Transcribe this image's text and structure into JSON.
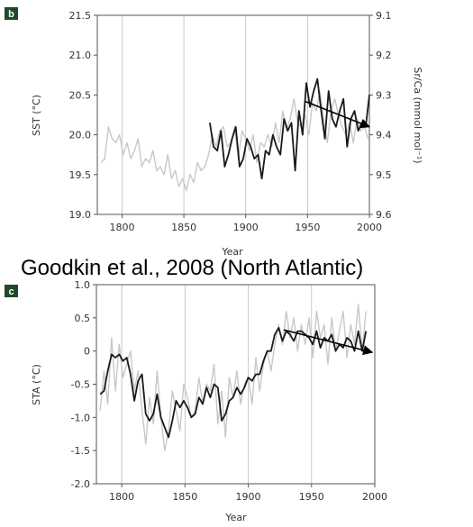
{
  "headline": "Goodkin et al., 2008  (North Atlantic)",
  "colors": {
    "panel_badge": "#1f4a2a",
    "gray_series": "#c8c8c8",
    "dark_series": "#1a1a1a",
    "frame": "#555555"
  },
  "chart_data": [
    {
      "type": "line",
      "panel_label": "b",
      "xlabel": "Year",
      "ylabel": "SST (°C)",
      "ylabel_right": "Sr/Ca (mmol mol⁻¹)",
      "xlim": [
        1780,
        2000
      ],
      "ylim": [
        19.0,
        21.5
      ],
      "ylim_right": [
        9.6,
        9.1
      ],
      "right_axis_inverted": true,
      "x_ticks": [
        "1800",
        "1850",
        "1900",
        "1950",
        "2000"
      ],
      "y_ticks": [
        "19.0",
        "19.5",
        "20.0",
        "20.5",
        "21.0",
        "21.5"
      ],
      "y_ticks_right": [
        "9.6",
        "9.5",
        "9.4",
        "9.3",
        "9.2",
        "9.1"
      ],
      "grid_x": [
        1800,
        1850,
        1900,
        1950
      ],
      "series": [
        {
          "color": "gray",
          "x": [
            1783,
            1786,
            1789,
            1792,
            1795,
            1798,
            1801,
            1804,
            1807,
            1810,
            1813,
            1816,
            1819,
            1822,
            1825,
            1828,
            1831,
            1834,
            1837,
            1840,
            1843,
            1846,
            1849,
            1852,
            1855,
            1858,
            1861,
            1864,
            1867,
            1870,
            1873,
            1876,
            1879,
            1882,
            1885,
            1888,
            1891,
            1894,
            1897,
            1900,
            1903,
            1906,
            1909,
            1912,
            1915,
            1918,
            1921,
            1924,
            1927,
            1930,
            1933,
            1936,
            1939,
            1942,
            1945,
            1948,
            1951,
            1954,
            1957,
            1960,
            1963,
            1966,
            1969,
            1972,
            1975,
            1978,
            1981,
            1984,
            1987,
            1990,
            1993,
            1996,
            1999
          ],
          "y": [
            19.65,
            19.7,
            20.1,
            19.95,
            19.9,
            20.0,
            19.75,
            19.9,
            19.7,
            19.8,
            19.95,
            19.6,
            19.7,
            19.65,
            19.8,
            19.55,
            19.6,
            19.5,
            19.75,
            19.45,
            19.55,
            19.35,
            19.45,
            19.3,
            19.5,
            19.4,
            19.65,
            19.55,
            19.6,
            19.75,
            20.0,
            19.85,
            20.05,
            20.1,
            19.85,
            19.9,
            20.1,
            19.7,
            20.05,
            19.95,
            19.8,
            20.0,
            19.65,
            19.9,
            19.85,
            20.0,
            19.85,
            20.15,
            19.9,
            20.3,
            20.05,
            20.2,
            20.45,
            20.15,
            20.1,
            20.25,
            20.0,
            20.4,
            20.3,
            20.55,
            20.2,
            19.9,
            20.3,
            20.45,
            20.25,
            20.1,
            20.0,
            20.15,
            19.9,
            20.2,
            20.05,
            20.1,
            19.95
          ]
        },
        {
          "color": "black",
          "x": [
            1871,
            1874,
            1877,
            1880,
            1883,
            1886,
            1889,
            1892,
            1895,
            1898,
            1901,
            1904,
            1907,
            1910,
            1913,
            1916,
            1919,
            1922,
            1925,
            1928,
            1931,
            1934,
            1937,
            1940,
            1943,
            1946,
            1949,
            1952,
            1955,
            1958,
            1961,
            1964,
            1967,
            1970,
            1973,
            1976,
            1979,
            1982,
            1985,
            1988,
            1991,
            1994,
            1997,
            2000
          ],
          "y": [
            20.15,
            19.85,
            19.8,
            20.05,
            19.6,
            19.75,
            19.95,
            20.1,
            19.6,
            19.7,
            19.95,
            19.85,
            19.7,
            19.75,
            19.45,
            19.8,
            19.75,
            20.0,
            19.85,
            19.75,
            20.2,
            20.05,
            20.15,
            19.55,
            20.3,
            20.0,
            20.65,
            20.35,
            20.55,
            20.7,
            20.3,
            19.95,
            20.55,
            20.2,
            20.1,
            20.3,
            20.45,
            19.85,
            20.2,
            20.3,
            20.05,
            20.15,
            20.1,
            20.5
          ]
        }
      ],
      "trend_arrow": {
        "from": [
          1948,
          20.42
        ],
        "to": [
          2000,
          20.1
        ]
      }
    },
    {
      "type": "line",
      "panel_label": "c",
      "xlabel": "Year",
      "ylabel": "STA (°C)",
      "xlim": [
        1780,
        2000
      ],
      "ylim": [
        -2.0,
        1.0
      ],
      "x_ticks": [
        "1800",
        "1850",
        "1900",
        "1950",
        "2000"
      ],
      "y_ticks": [
        "-2.0",
        "-1.5",
        "-1.0",
        "-0.5",
        "0",
        "0.5",
        "1.0"
      ],
      "grid_x": [
        1800,
        1850,
        1900,
        1950
      ],
      "series": [
        {
          "color": "gray",
          "x": [
            1783,
            1786,
            1789,
            1792,
            1795,
            1798,
            1801,
            1804,
            1807,
            1810,
            1813,
            1816,
            1819,
            1822,
            1825,
            1828,
            1831,
            1834,
            1837,
            1840,
            1843,
            1846,
            1849,
            1852,
            1855,
            1858,
            1861,
            1864,
            1867,
            1870,
            1873,
            1876,
            1879,
            1882,
            1885,
            1888,
            1891,
            1894,
            1897,
            1900,
            1903,
            1906,
            1909,
            1912,
            1915,
            1918,
            1921,
            1924,
            1927,
            1930,
            1933,
            1936,
            1939,
            1942,
            1945,
            1948,
            1951,
            1954,
            1957,
            1960,
            1963,
            1966,
            1969,
            1972,
            1975,
            1978,
            1981,
            1984,
            1987,
            1990,
            1993
          ],
          "y": [
            -0.9,
            -0.3,
            -0.8,
            0.2,
            -0.6,
            0.1,
            -0.4,
            -0.2,
            0.0,
            -0.6,
            -0.3,
            -0.9,
            -1.4,
            -0.7,
            -1.1,
            -0.3,
            -1.0,
            -1.5,
            -1.2,
            -0.6,
            -0.9,
            -1.2,
            -0.5,
            -0.7,
            -1.0,
            -0.9,
            -0.4,
            -0.8,
            -0.5,
            -0.6,
            -0.2,
            -1.1,
            -0.6,
            -1.3,
            -0.4,
            -0.7,
            -0.3,
            -0.8,
            -0.5,
            -0.4,
            -0.8,
            -0.1,
            -0.6,
            -0.2,
            0.0,
            -0.3,
            0.1,
            0.4,
            0.1,
            0.6,
            0.2,
            0.5,
            0.0,
            0.4,
            0.1,
            0.5,
            -0.1,
            0.6,
            0.2,
            0.4,
            -0.2,
            0.5,
            0.0,
            0.3,
            0.6,
            -0.1,
            0.4,
            0.1,
            0.7,
            0.0,
            0.6
          ]
        },
        {
          "color": "black",
          "x": [
            1783,
            1786,
            1789,
            1792,
            1795,
            1798,
            1801,
            1804,
            1807,
            1810,
            1813,
            1816,
            1819,
            1822,
            1825,
            1828,
            1831,
            1834,
            1837,
            1840,
            1843,
            1846,
            1849,
            1852,
            1855,
            1858,
            1861,
            1864,
            1867,
            1870,
            1873,
            1876,
            1879,
            1882,
            1885,
            1888,
            1891,
            1894,
            1897,
            1900,
            1903,
            1906,
            1909,
            1912,
            1915,
            1918,
            1921,
            1924,
            1927,
            1930,
            1933,
            1936,
            1939,
            1942,
            1945,
            1948,
            1951,
            1954,
            1957,
            1960,
            1963,
            1966,
            1969,
            1972,
            1975,
            1978,
            1981,
            1984,
            1987,
            1990,
            1993
          ],
          "y": [
            -0.65,
            -0.6,
            -0.3,
            -0.05,
            -0.1,
            -0.05,
            -0.15,
            -0.1,
            -0.35,
            -0.75,
            -0.45,
            -0.35,
            -0.95,
            -1.05,
            -0.95,
            -0.65,
            -1.0,
            -1.15,
            -1.3,
            -1.05,
            -0.75,
            -0.85,
            -0.75,
            -0.85,
            -1.0,
            -0.95,
            -0.7,
            -0.8,
            -0.55,
            -0.7,
            -0.5,
            -0.55,
            -1.05,
            -0.95,
            -0.75,
            -0.7,
            -0.55,
            -0.65,
            -0.55,
            -0.4,
            -0.45,
            -0.35,
            -0.35,
            -0.15,
            0.0,
            0.0,
            0.25,
            0.35,
            0.15,
            0.3,
            0.25,
            0.15,
            0.3,
            0.3,
            0.25,
            0.2,
            0.1,
            0.3,
            0.05,
            0.2,
            0.15,
            0.25,
            0.0,
            0.1,
            0.05,
            0.2,
            0.15,
            0.0,
            0.3,
            0.0,
            0.3
          ]
        }
      ],
      "trend_arrow": {
        "from": [
          1928,
          0.32
        ],
        "to": [
          1998,
          -0.02
        ]
      }
    }
  ]
}
